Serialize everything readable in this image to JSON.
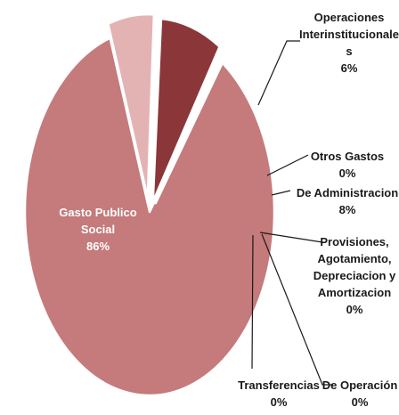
{
  "chart_data": {
    "type": "pie",
    "exploded": true,
    "slices": [
      {
        "name": "Gasto Publico Social",
        "name_lines": [
          "Gasto Publico",
          "Social"
        ],
        "value": 86,
        "value_label": "86%",
        "color": "#C57A7B"
      },
      {
        "name": "Operaciones Interinstitucionales",
        "name_lines": [
          "Operaciones",
          "Interinstitucionale",
          "s"
        ],
        "value": 6,
        "value_label": "6%",
        "color": "#E3B3B4"
      },
      {
        "name": "Otros Gastos",
        "name_lines": [
          "Otros Gastos"
        ],
        "value": 0,
        "value_label": "0%",
        "color": "#D99A9B"
      },
      {
        "name": "De Administracion",
        "name_lines": [
          "De Administracion"
        ],
        "value": 8,
        "value_label": "8%",
        "color": "#8B3638"
      },
      {
        "name": "Provisiones, Agotamiento, Depreciacion y Amortizacion",
        "name_lines": [
          "Provisiones,",
          "Agotamiento,",
          "Depreciacion y",
          "Amortizacion"
        ],
        "value": 0,
        "value_label": "0%",
        "color": "#A54A4C"
      },
      {
        "name": "De Operación",
        "name_lines": [
          "De Operación"
        ],
        "value": 0,
        "value_label": "0%",
        "color": "#B35C5E"
      },
      {
        "name": "Transferencias",
        "name_lines": [
          "Transferencias"
        ],
        "value": 0,
        "value_label": "0%",
        "color": "#C06A6C"
      }
    ]
  }
}
